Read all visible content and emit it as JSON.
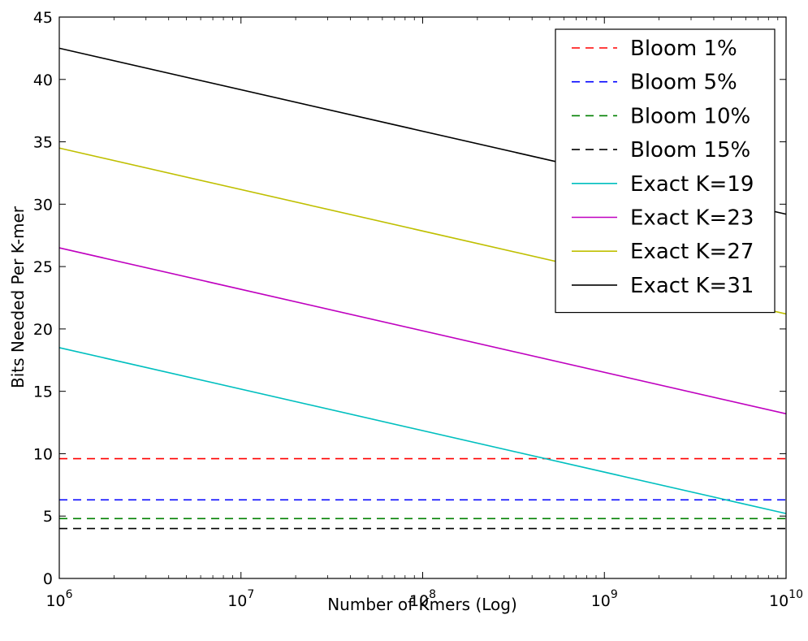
{
  "chart_data": {
    "type": "line",
    "title": "",
    "xlabel": "Number of Kmers (Log)",
    "ylabel": "Bits Needed Per K-mer",
    "xscale": "log",
    "xlim": [
      1000000,
      10000000000
    ],
    "ylim": [
      0,
      45
    ],
    "x_ticks": [
      1000000,
      10000000,
      100000000,
      1000000000,
      10000000000
    ],
    "x_tick_labels": [
      {
        "base": "10",
        "exp": "6"
      },
      {
        "base": "10",
        "exp": "7"
      },
      {
        "base": "10",
        "exp": "8"
      },
      {
        "base": "10",
        "exp": "9"
      },
      {
        "base": "10",
        "exp": "10"
      }
    ],
    "y_ticks": [
      0,
      5,
      10,
      15,
      20,
      25,
      30,
      35,
      40,
      45
    ],
    "y_tick_labels": [
      "0",
      "5",
      "10",
      "15",
      "20",
      "25",
      "30",
      "35",
      "40",
      "45"
    ],
    "grid": false,
    "legend_position": "top-right",
    "x": [
      1000000,
      10000000000
    ],
    "series": [
      {
        "name": "Bloom 1%",
        "color": "#ff0000",
        "dash": "dashed",
        "values": [
          9.6,
          9.6
        ]
      },
      {
        "name": "Bloom 5%",
        "color": "#0000ff",
        "dash": "dashed",
        "values": [
          6.3,
          6.3
        ]
      },
      {
        "name": "Bloom 10%",
        "color": "#008000",
        "dash": "dashed",
        "values": [
          4.8,
          4.8
        ]
      },
      {
        "name": "Bloom 15%",
        "color": "#000000",
        "dash": "dashed",
        "values": [
          4.0,
          4.0
        ]
      },
      {
        "name": "Exact K=19",
        "color": "#00bfbf",
        "dash": "solid",
        "values": [
          18.5,
          5.2
        ]
      },
      {
        "name": "Exact K=23",
        "color": "#bf00bf",
        "dash": "solid",
        "values": [
          26.5,
          13.2
        ]
      },
      {
        "name": "Exact K=27",
        "color": "#bfbf00",
        "dash": "solid",
        "values": [
          34.5,
          21.2
        ]
      },
      {
        "name": "Exact K=31",
        "color": "#000000",
        "dash": "solid",
        "values": [
          42.5,
          29.2
        ]
      }
    ]
  }
}
